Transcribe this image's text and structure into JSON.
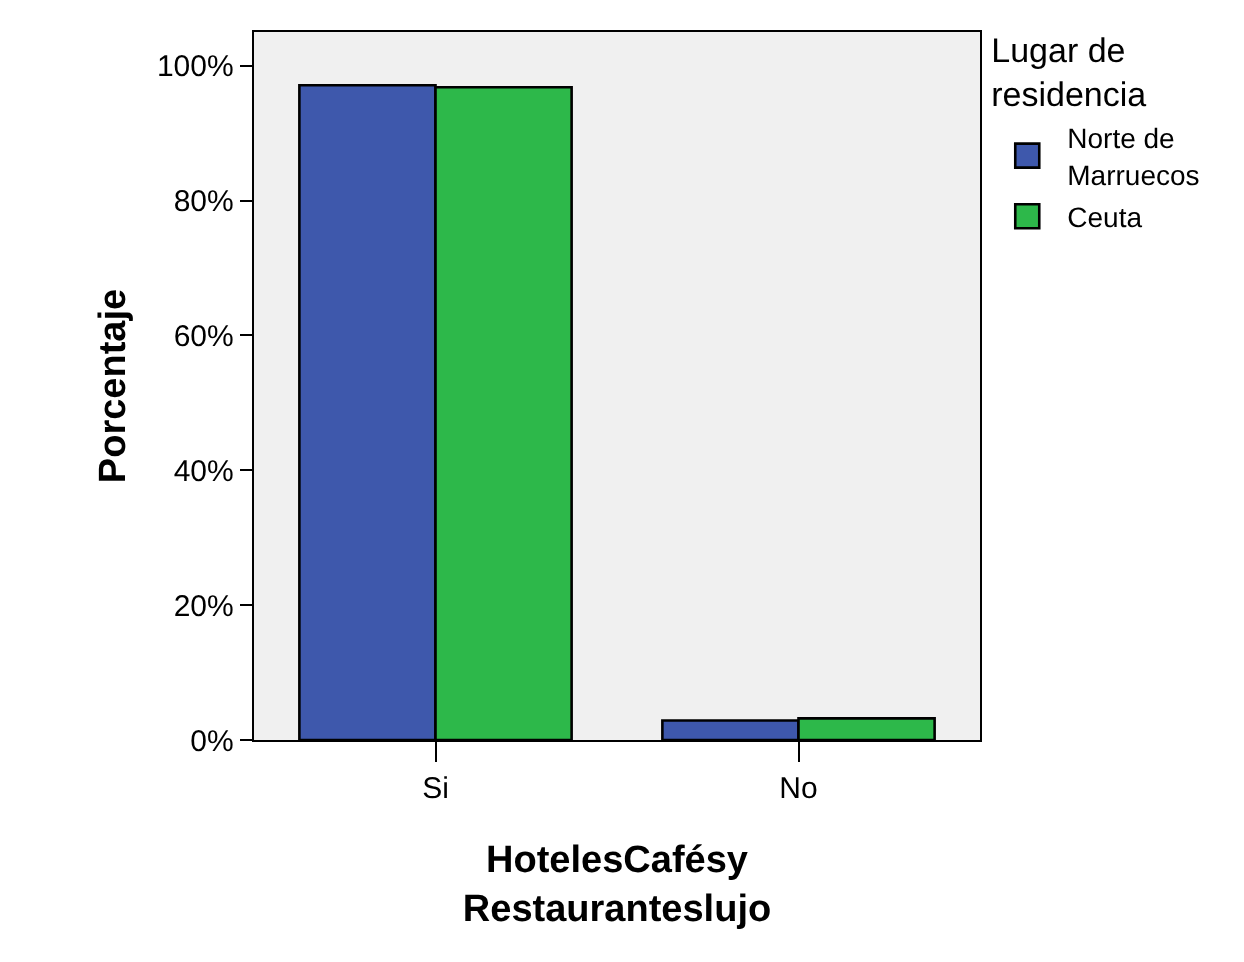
{
  "chart_data": {
    "type": "bar",
    "xlabel": "HotelesCafésy Restauranteslujo",
    "ylabel": "Porcentaje",
    "legend_title": "Lugar de residencia",
    "categories": [
      "Si",
      "No"
    ],
    "series": [
      {
        "name": "Norte de Marruecos",
        "color": "#3e58ac",
        "values": [
          97.1,
          2.9
        ]
      },
      {
        "name": "Ceuta",
        "color": "#2db84a",
        "values": [
          96.8,
          3.2
        ]
      }
    ],
    "ylim": [
      0,
      105
    ],
    "yticks": [
      {
        "value": 0,
        "label": "0%"
      },
      {
        "value": 20,
        "label": "20%"
      },
      {
        "value": 40,
        "label": "40%"
      },
      {
        "value": 60,
        "label": "60%"
      },
      {
        "value": 80,
        "label": "80%"
      },
      {
        "value": 100,
        "label": "100%"
      }
    ],
    "grid": false,
    "legend": "right"
  }
}
